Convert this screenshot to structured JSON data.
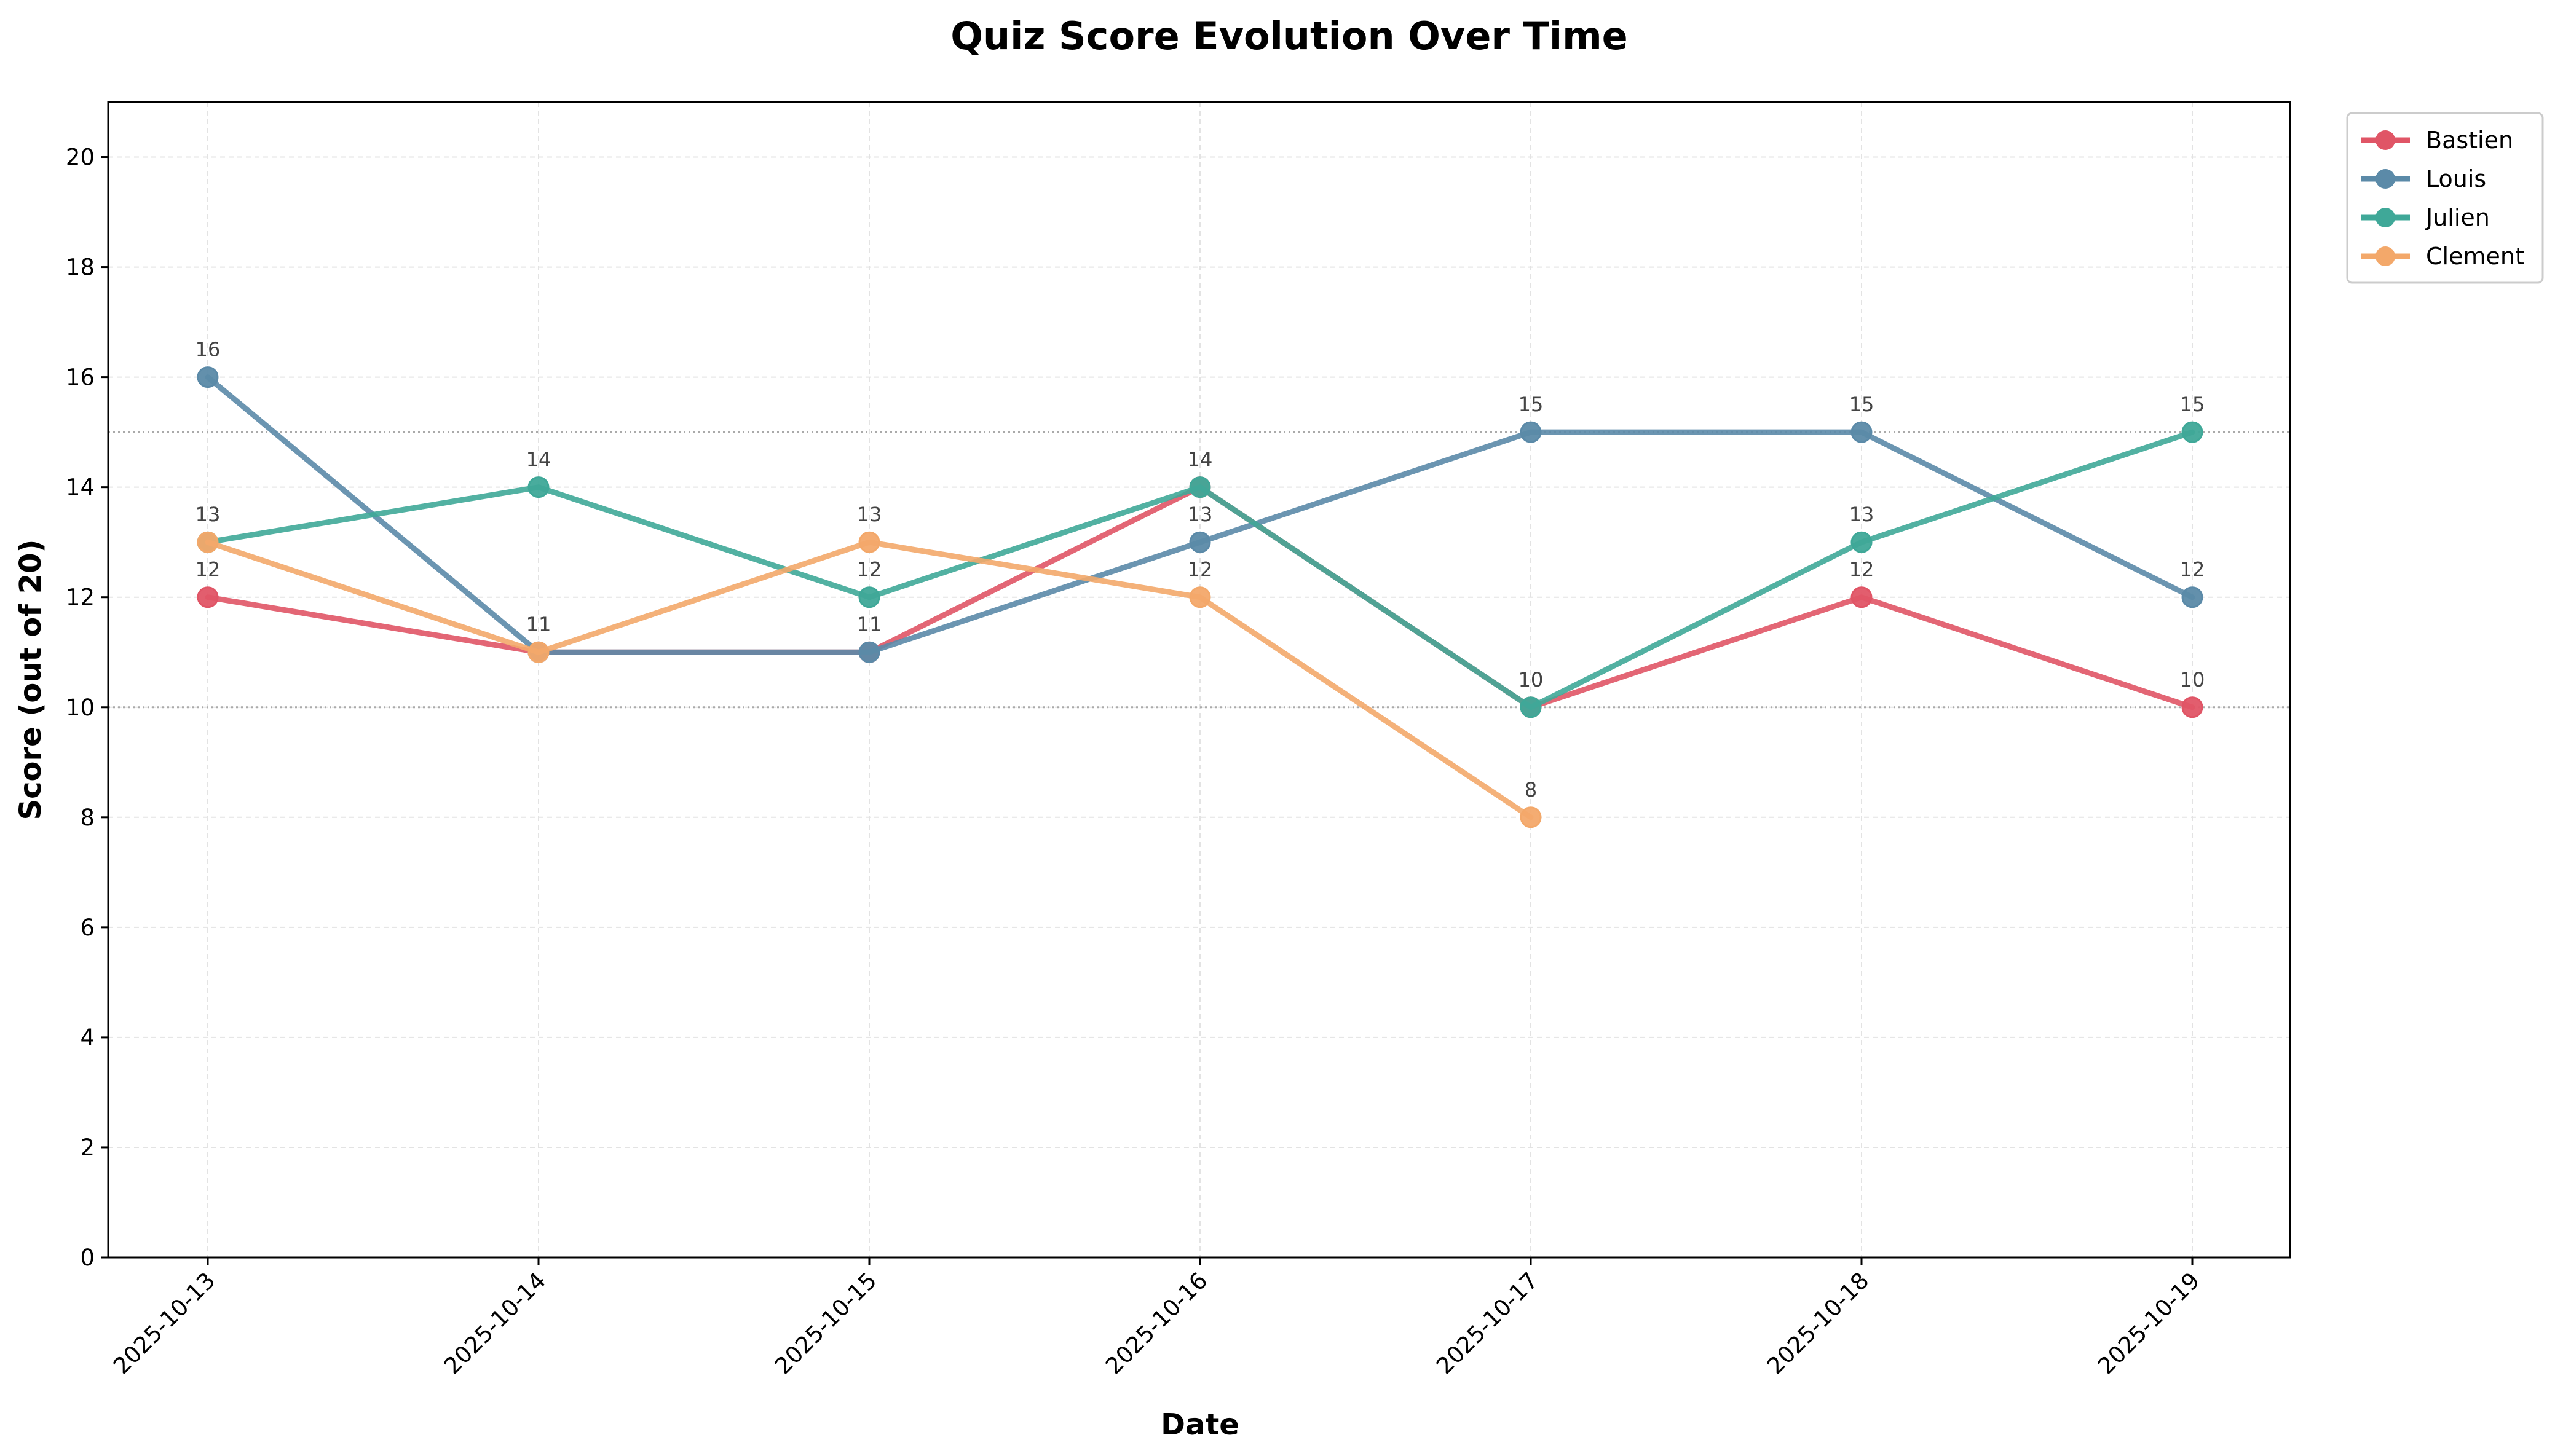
{
  "chart_data": {
    "type": "line",
    "title": "Quiz Score Evolution Over Time",
    "xlabel": "Date",
    "ylabel": "Score (out of 20)",
    "x": [
      "2025-10-13",
      "2025-10-14",
      "2025-10-15",
      "2025-10-16",
      "2025-10-17",
      "2025-10-18",
      "2025-10-19"
    ],
    "ylim": [
      0,
      21
    ],
    "yticks": [
      0,
      2,
      4,
      6,
      8,
      10,
      12,
      14,
      16,
      18,
      20
    ],
    "grid": true,
    "reference_lines": [
      10,
      15
    ],
    "legend_position": "top-right outside",
    "series": [
      {
        "name": "Bastien",
        "color": "#e05566",
        "values": [
          12,
          11,
          11,
          14,
          10,
          12,
          10
        ]
      },
      {
        "name": "Louis",
        "color": "#5b8aa8",
        "values": [
          16,
          11,
          11,
          13,
          15,
          15,
          12
        ]
      },
      {
        "name": "Julien",
        "color": "#3fa898",
        "values": [
          13,
          14,
          12,
          14,
          10,
          13,
          15
        ]
      },
      {
        "name": "Clement",
        "color": "#f3a86a",
        "values": [
          13,
          11,
          13,
          12,
          8,
          null,
          null
        ]
      }
    ]
  }
}
